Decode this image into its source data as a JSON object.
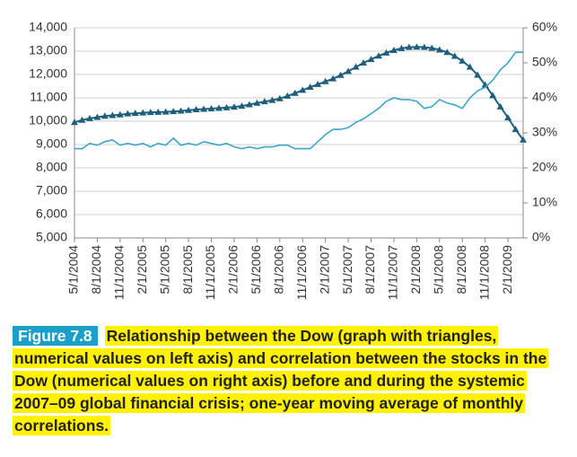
{
  "chart_data": {
    "type": "line",
    "categories": [
      "5/1/2004",
      null,
      null,
      "8/1/2004",
      null,
      null,
      "11/1/2004",
      null,
      null,
      "2/1/2005",
      null,
      null,
      "5/1/2005",
      null,
      null,
      "8/1/2005",
      null,
      null,
      "11/1/2005",
      null,
      null,
      "2/1/2006",
      null,
      null,
      "5/1/2006",
      null,
      null,
      "8/1/2006",
      null,
      null,
      "11/1/2006",
      null,
      null,
      "2/1/2007",
      null,
      null,
      "5/1/2007",
      null,
      null,
      "8/1/2007",
      null,
      null,
      "11/1/2007",
      null,
      null,
      "2/1/2008",
      null,
      null,
      "5/1/2008",
      null,
      null,
      "8/1/2008",
      null,
      null,
      "11/1/2008",
      null,
      null,
      "2/1/2009",
      null,
      null
    ],
    "series": [
      {
        "color": "#1d5f7c",
        "marker": "triangle",
        "axis": "y",
        "values": [
          9950,
          10050,
          10120,
          10170,
          10220,
          10250,
          10280,
          10320,
          10340,
          10360,
          10380,
          10390,
          10400,
          10420,
          10440,
          10470,
          10500,
          10520,
          10540,
          10560,
          10580,
          10610,
          10650,
          10710,
          10780,
          10840,
          10900,
          10970,
          11080,
          11200,
          11330,
          11460,
          11580,
          11700,
          11820,
          11970,
          12140,
          12320,
          12500,
          12650,
          12800,
          12930,
          13040,
          13120,
          13170,
          13180,
          13170,
          13130,
          13060,
          12950,
          12790,
          12580,
          12320,
          11980,
          11560,
          11100,
          10620,
          10150,
          9650,
          9200
        ]
      },
      {
        "color": "#3aa6c9",
        "axis": "y2",
        "values": [
          25.5,
          25.5,
          27,
          26.5,
          27.5,
          28,
          26.5,
          27,
          26.5,
          27,
          26,
          27,
          26.5,
          28.5,
          26.5,
          27,
          26.5,
          27.5,
          27,
          26.5,
          27,
          26,
          25.5,
          26,
          25.5,
          26,
          26,
          26.5,
          26.5,
          25.5,
          25.5,
          25.5,
          27.5,
          29.5,
          31,
          31,
          31.5,
          33,
          34,
          35.5,
          37,
          39,
          40,
          39.5,
          39.5,
          39,
          37,
          37.5,
          39.5,
          38.5,
          38,
          37,
          40,
          42,
          43,
          45,
          48,
          50,
          53,
          53
        ]
      }
    ],
    "ylim": [
      5000,
      14000
    ],
    "yticks": [
      {
        "value": 5000,
        "label": "5,000"
      },
      {
        "value": 6000,
        "label": "6,000"
      },
      {
        "value": 7000,
        "label": "7,000"
      },
      {
        "value": 8000,
        "label": "8,000"
      },
      {
        "value": 9000,
        "label": "9,000"
      },
      {
        "value": 10000,
        "label": "10,000"
      },
      {
        "value": 11000,
        "label": "11,000"
      },
      {
        "value": 12000,
        "label": "12,000"
      },
      {
        "value": 13000,
        "label": "13,000"
      },
      {
        "value": 14000,
        "label": "14,000"
      }
    ],
    "y2lim": [
      0,
      60
    ],
    "y2ticks": [
      {
        "value": 0,
        "label": "0%"
      },
      {
        "value": 10,
        "label": "10%"
      },
      {
        "value": 20,
        "label": "20%"
      },
      {
        "value": 30,
        "label": "30%"
      },
      {
        "value": 40,
        "label": "40%"
      },
      {
        "value": 50,
        "label": "50%"
      },
      {
        "value": 60,
        "label": "60%"
      }
    ],
    "grid": true
  },
  "caption": {
    "label": "Figure 7.8",
    "text": "Relationship between the Dow (graph with triangles, numerical values on left axis) and correlation between the stocks in the Dow (numerical values on right axis) before and during the systemic 2007–09 global financial crisis; one-year moving average of monthly correlations."
  }
}
